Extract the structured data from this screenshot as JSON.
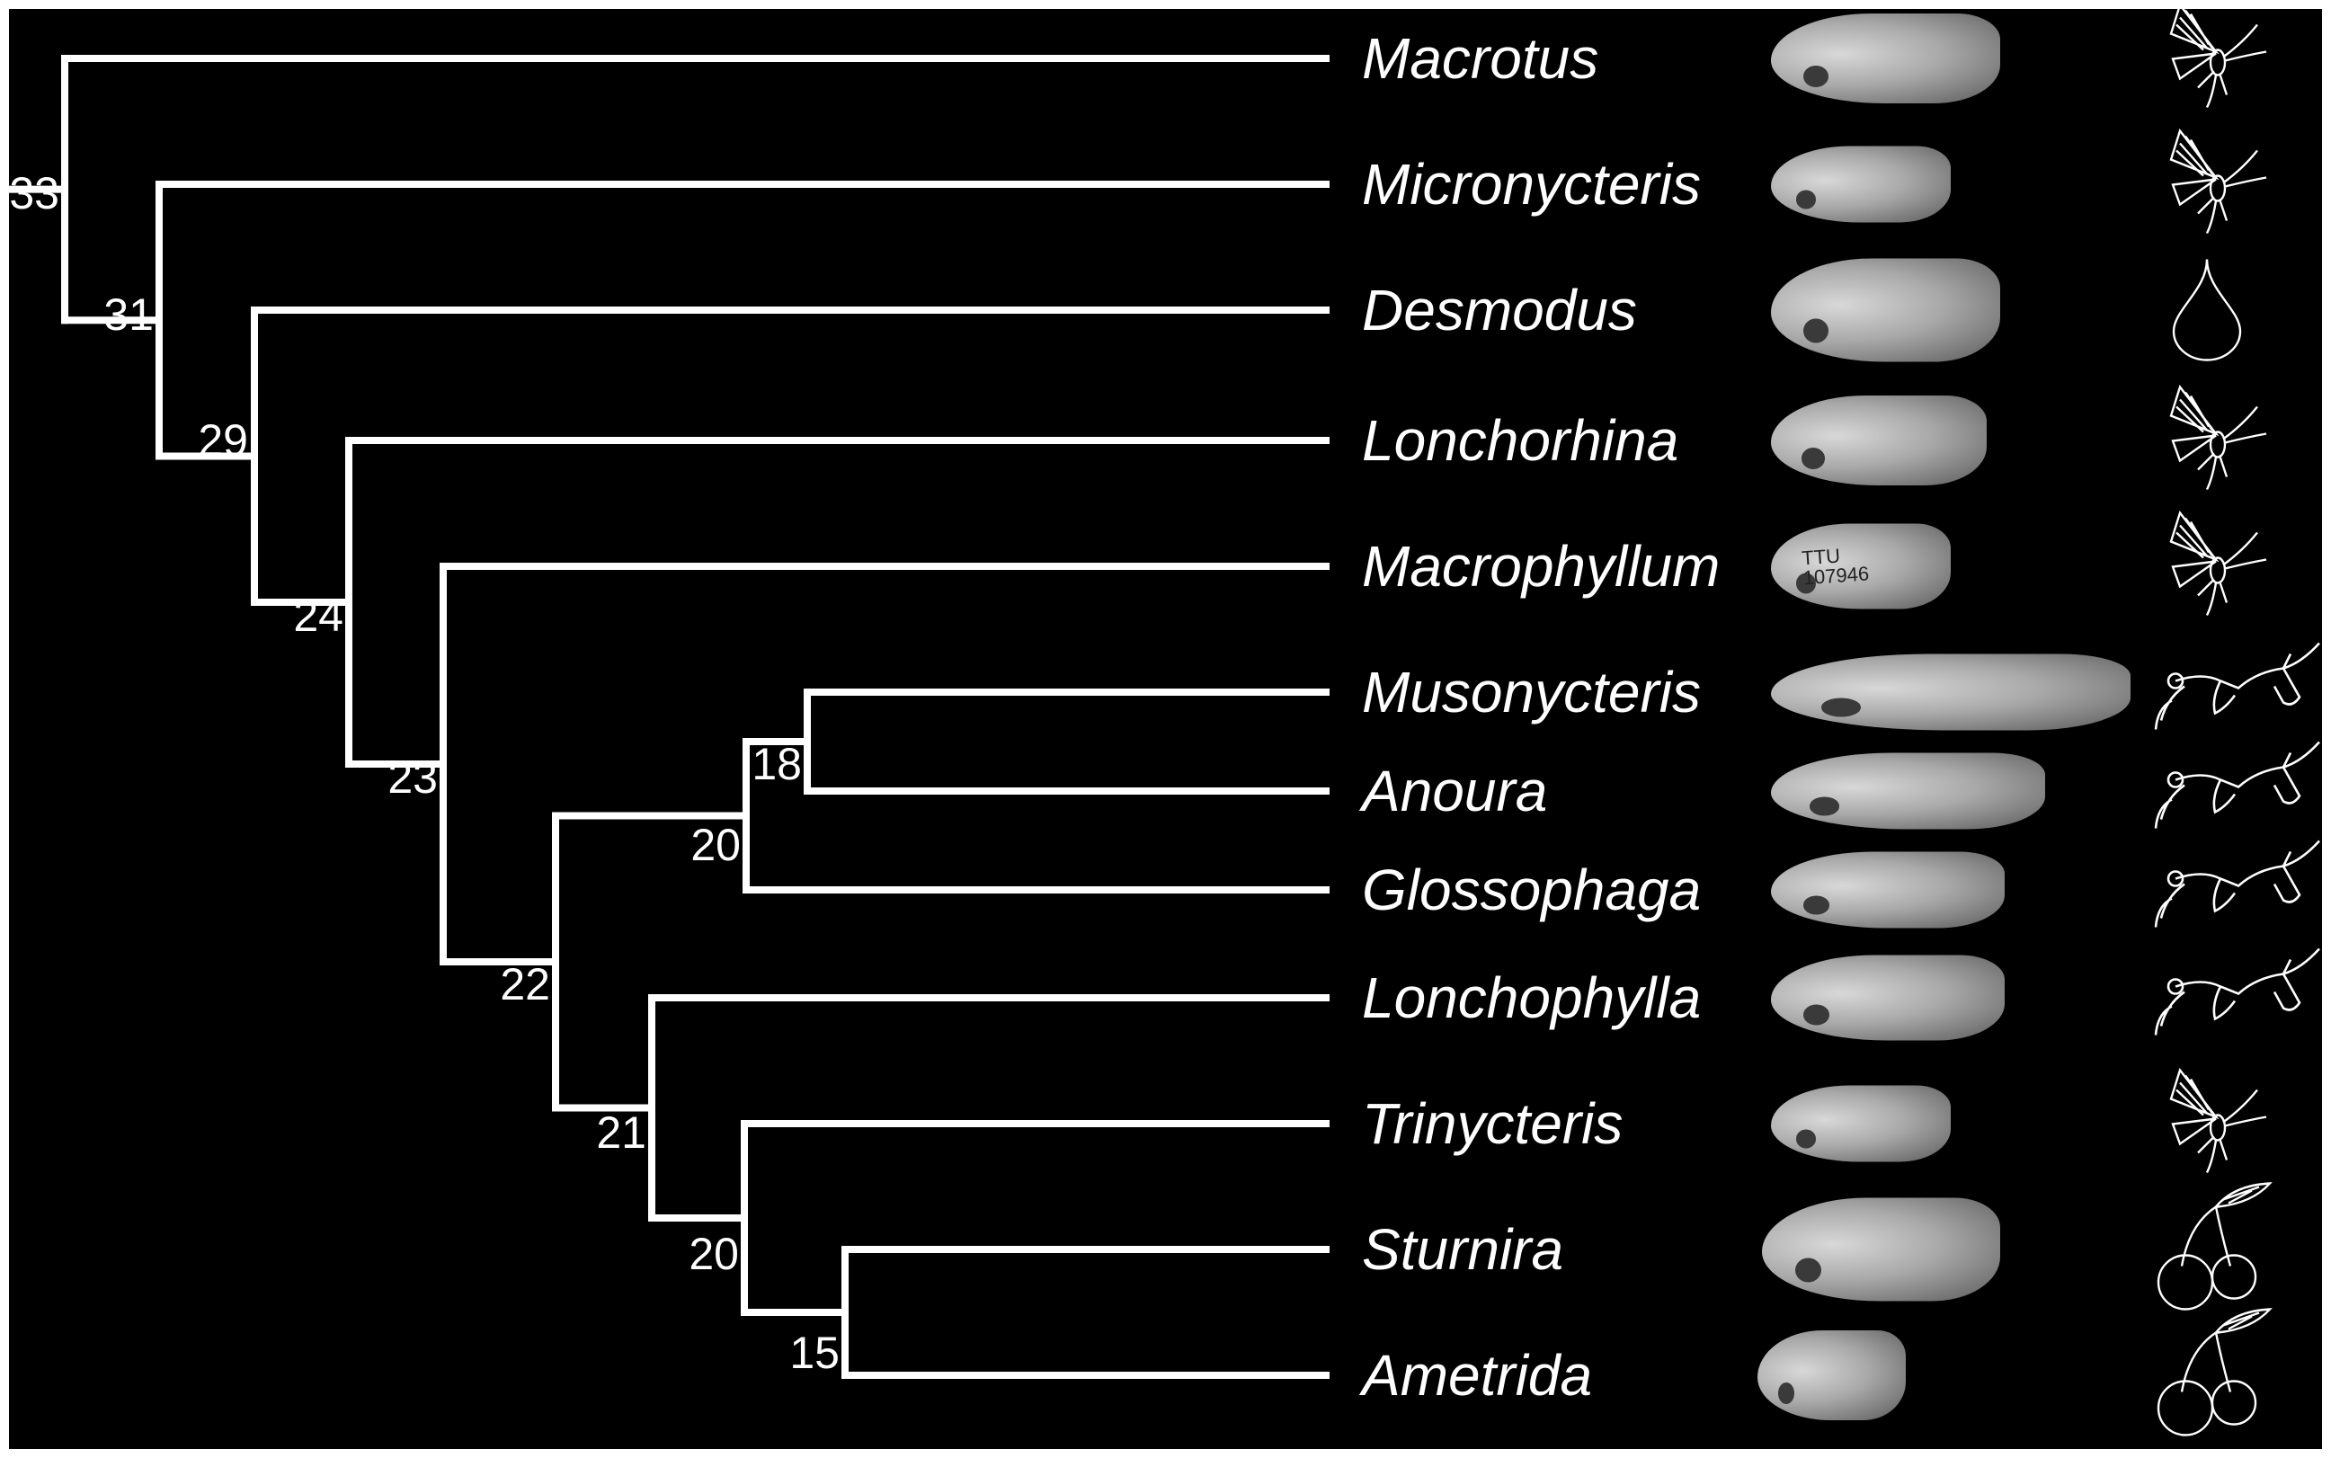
{
  "taxa": [
    {
      "name": "Macrotus",
      "diet_icon": "insect-icon"
    },
    {
      "name": "Micronycteris",
      "diet_icon": "insect-icon"
    },
    {
      "name": "Desmodus",
      "diet_icon": "blood-drop-icon"
    },
    {
      "name": "Lonchorhina",
      "diet_icon": "insect-icon"
    },
    {
      "name": "Macrophyllum",
      "diet_icon": "insect-icon"
    },
    {
      "name": "Musonycteris",
      "diet_icon": "flower-icon"
    },
    {
      "name": "Anoura",
      "diet_icon": "flower-icon"
    },
    {
      "name": "Glossophaga",
      "diet_icon": "flower-icon"
    },
    {
      "name": "Lonchophylla",
      "diet_icon": "flower-icon"
    },
    {
      "name": "Trinycteris",
      "diet_icon": "insect-icon"
    },
    {
      "name": "Sturnira",
      "diet_icon": "cherry-fruit-icon"
    },
    {
      "name": "Ametrida",
      "diet_icon": "cherry-fruit-icon"
    }
  ],
  "nodes": [
    {
      "id": "n33",
      "label": "33"
    },
    {
      "id": "n31",
      "label": "31"
    },
    {
      "id": "n29",
      "label": "29"
    },
    {
      "id": "n24",
      "label": "24"
    },
    {
      "id": "n23",
      "label": "23"
    },
    {
      "id": "n22",
      "label": "22"
    },
    {
      "id": "n20a",
      "label": "20"
    },
    {
      "id": "n18",
      "label": "18"
    },
    {
      "id": "n21",
      "label": "21"
    },
    {
      "id": "n20b",
      "label": "20"
    },
    {
      "id": "n15",
      "label": "15"
    }
  ],
  "specimen_labels": [
    {
      "taxon": "Macrophyllum",
      "text": "TTU 107946"
    }
  ],
  "colors": {
    "background": "#000000",
    "lines": "#ffffff",
    "text": "#ffffff"
  }
}
